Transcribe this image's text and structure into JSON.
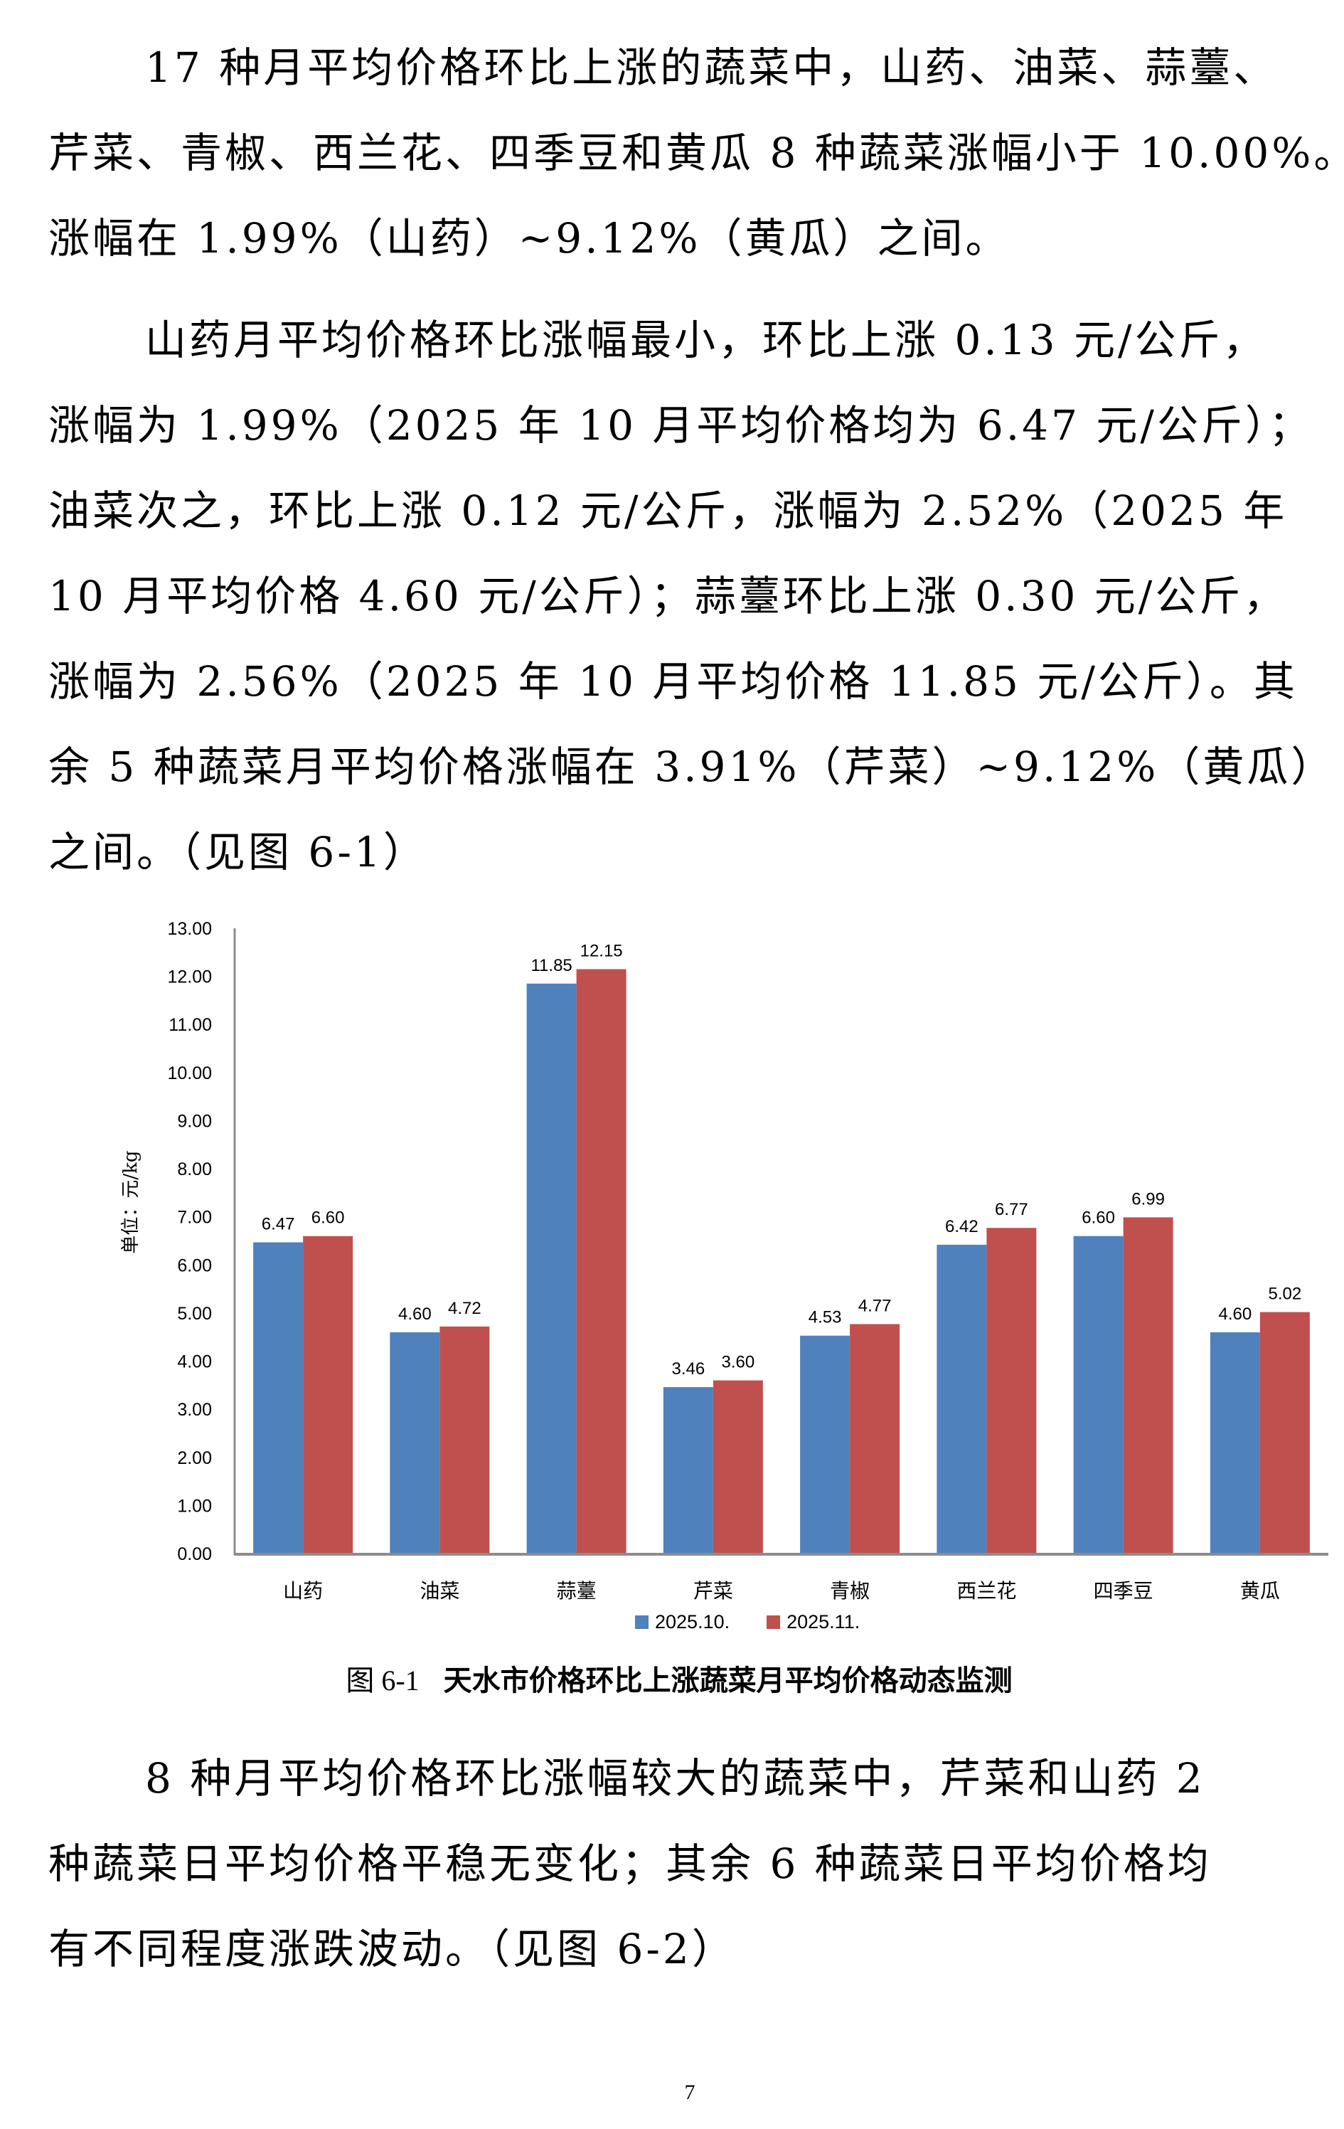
{
  "paragraphs": [
    {
      "lines": [
        "17 种月平均价格环比上涨的蔬菜中，山药、油菜、蒜薹、",
        "芹菜、青椒、西兰花、四季豆和黄瓜 8 种蔬菜涨幅小于 10.00%。",
        "涨幅在 1.99%（山药）~9.12%（黄瓜）之间。"
      ]
    },
    {
      "lines": [
        "山药月平均价格环比涨幅最小，环比上涨 0.13 元/公斤，",
        "涨幅为 1.99%（2025 年 10 月平均价格均为 6.47 元/公斤）；",
        "油菜次之，环比上涨 0.12 元/公斤，涨幅为 2.52%（2025 年",
        "10 月平均价格 4.60 元/公斤）；蒜薹环比上涨 0.30 元/公斤，",
        "涨幅为 2.56%（2025 年 10 月平均价格 11.85 元/公斤）。其",
        "余 5 种蔬菜月平均价格涨幅在 3.91%（芹菜）~9.12%（黄瓜）",
        "之间。（见图 6-1）"
      ]
    },
    {
      "lines": [
        "8 种月平均价格环比涨幅较大的蔬菜中，芹菜和山药 2",
        "种蔬菜日平均价格平稳无变化；其余 6 种蔬菜日平均价格均",
        "有不同程度涨跌波动。（见图 6-2）"
      ]
    }
  ],
  "figure": {
    "caption_number": "图 6-1",
    "caption_title": "天水市价格环比上涨蔬菜月平均价格动态监测"
  },
  "page_number": "7",
  "chart_data": {
    "type": "bar",
    "title": "天水市价格环比上涨蔬菜月平均价格动态监测",
    "xlabel": "",
    "ylabel": "单位：元/kg",
    "ylim": [
      0,
      13
    ],
    "yticks": [
      "0.00",
      "1.00",
      "2.00",
      "3.00",
      "4.00",
      "5.00",
      "6.00",
      "7.00",
      "8.00",
      "9.00",
      "10.00",
      "11.00",
      "12.00",
      "13.00"
    ],
    "grid": false,
    "legend_position": "bottom",
    "categories": [
      "山药",
      "油菜",
      "蒜薹",
      "芹菜",
      "青椒",
      "西兰花",
      "四季豆",
      "黄瓜"
    ],
    "series": [
      {
        "name": "2025.10.",
        "color": "#4F81BD",
        "values": [
          6.47,
          4.6,
          11.85,
          3.46,
          4.53,
          6.42,
          6.6,
          4.6
        ],
        "labels": [
          "6.47",
          "4.60",
          "11.85",
          "3.46",
          "4.53",
          "6.42",
          "6.60",
          "4.60"
        ]
      },
      {
        "name": "2025.11.",
        "color": "#C0504D",
        "values": [
          6.6,
          4.72,
          12.15,
          3.6,
          4.77,
          6.77,
          6.99,
          5.02
        ],
        "labels": [
          "6.60",
          "4.72",
          "12.15",
          "3.60",
          "4.77",
          "6.77",
          "6.99",
          "5.02"
        ]
      }
    ]
  }
}
